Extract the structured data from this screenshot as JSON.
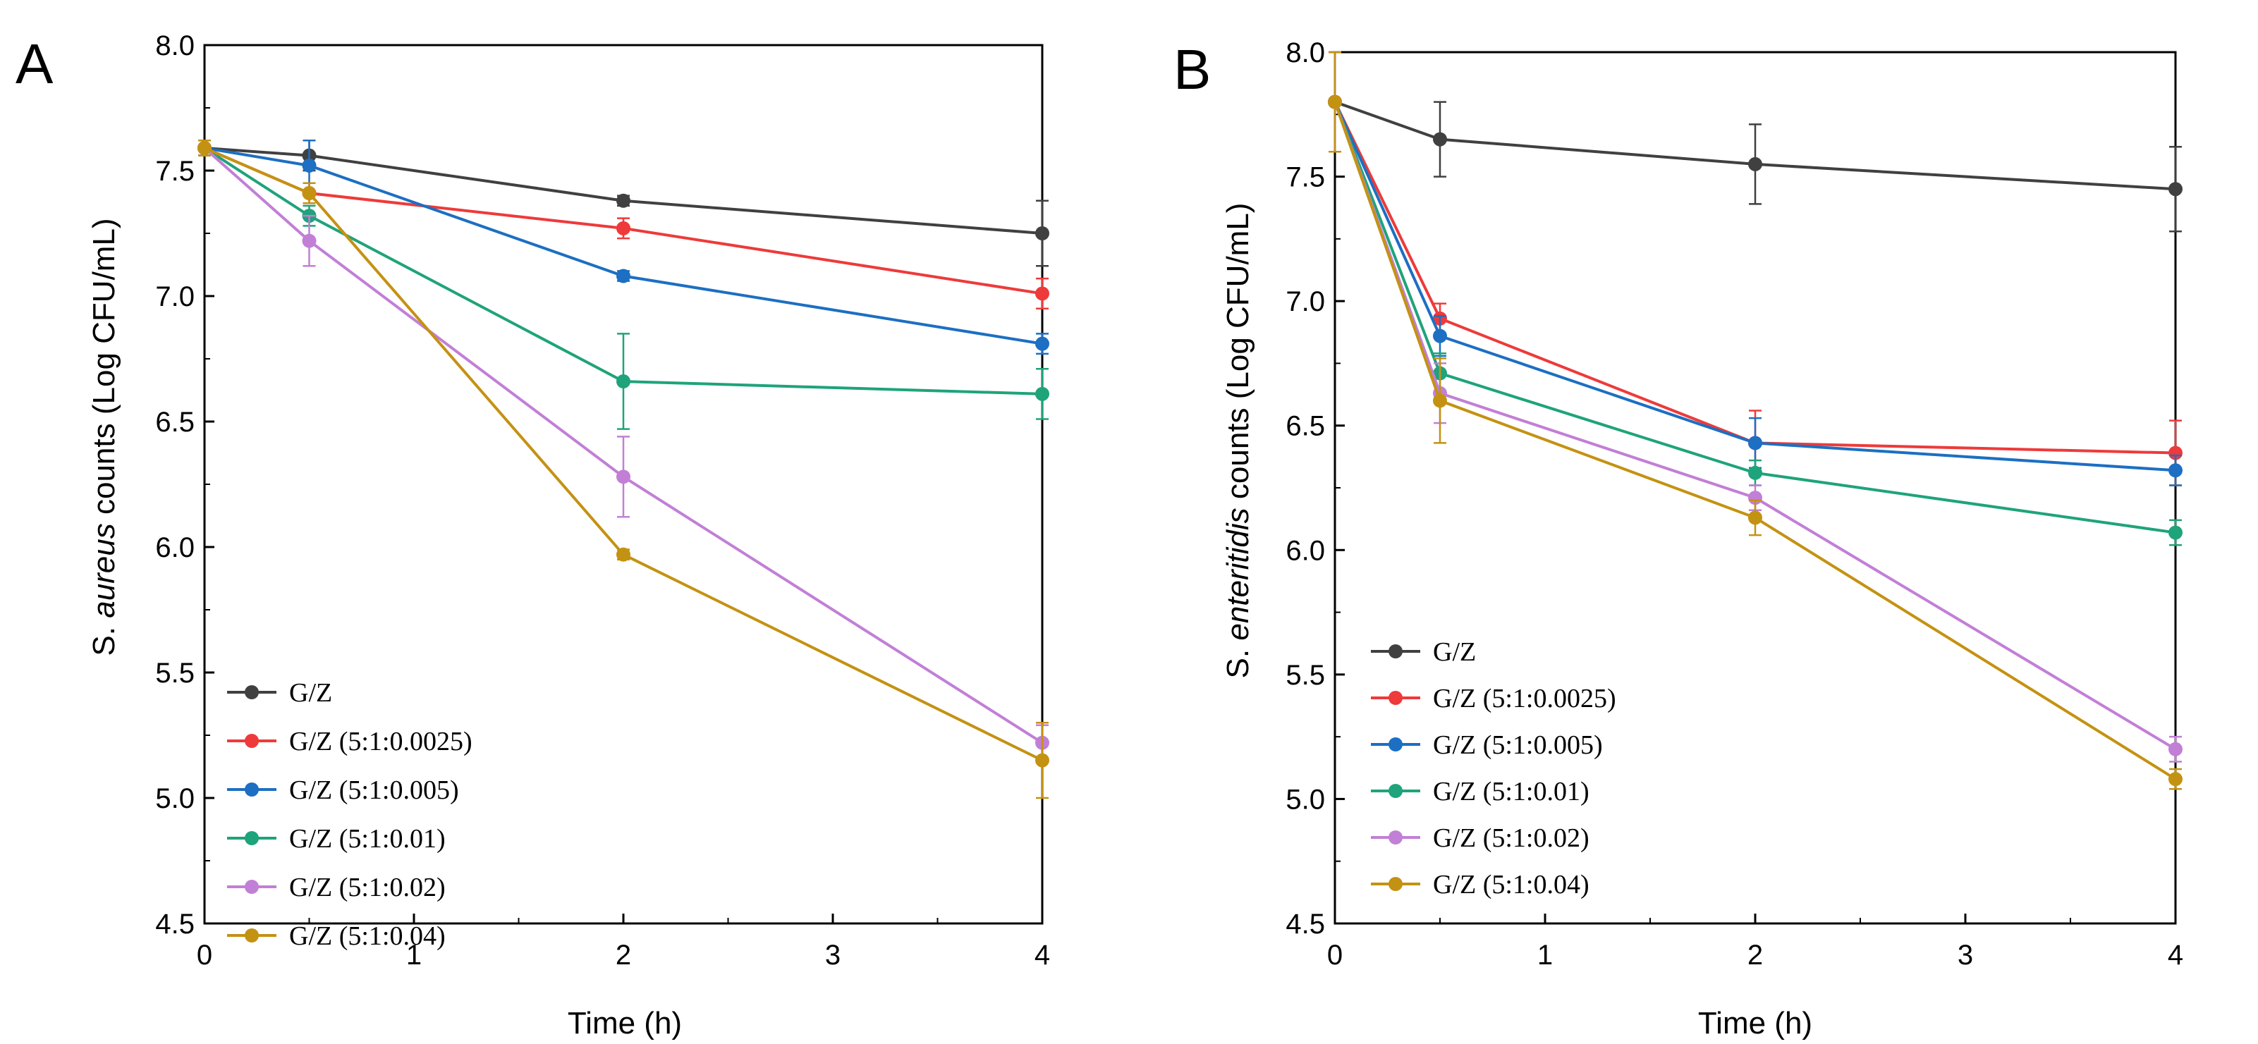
{
  "chart_data": [
    {
      "panel_label": "A",
      "type": "line",
      "xlabel": "Time (h)",
      "ylabel_prefix": "S. ",
      "ylabel_italic": "aureus",
      "ylabel_suffix": " counts (Log CFU/mL)",
      "xlim": [
        0,
        4
      ],
      "ylim": [
        4.5,
        8.0
      ],
      "xticks": [
        "0",
        "1",
        "2",
        "3",
        "4"
      ],
      "yticks": [
        "4.5",
        "5.0",
        "5.5",
        "6.0",
        "6.5",
        "7.0",
        "7.5",
        "8.0"
      ],
      "grid": false,
      "legend_position": "bottom-left",
      "x": [
        0,
        0.5,
        2,
        4
      ],
      "series": [
        {
          "name": "G/Z",
          "color": "#404040",
          "values": [
            7.59,
            7.56,
            7.38,
            7.25
          ],
          "errors": [
            0.03,
            0.06,
            0.02,
            0.13
          ]
        },
        {
          "name": "G/Z (5:1:0.0025)",
          "color": "#ee3a3a",
          "values": [
            7.59,
            7.41,
            7.27,
            7.01
          ],
          "errors": [
            0.03,
            0.04,
            0.04,
            0.06
          ]
        },
        {
          "name": "G/Z (5:1:0.005)",
          "color": "#1c6fc2",
          "values": [
            7.59,
            7.52,
            7.08,
            6.81
          ],
          "errors": [
            0.03,
            0.1,
            0.02,
            0.04
          ]
        },
        {
          "name": "G/Z (5:1:0.01)",
          "color": "#1fa37a",
          "values": [
            7.59,
            7.32,
            6.66,
            6.61
          ],
          "errors": [
            0.03,
            0.04,
            0.19,
            0.1
          ]
        },
        {
          "name": "G/Z (5:1:0.02)",
          "color": "#c27fd6",
          "values": [
            7.59,
            7.22,
            6.28,
            5.22
          ],
          "errors": [
            0.03,
            0.1,
            0.16,
            0.07
          ]
        },
        {
          "name": "G/Z (5:1:0.04)",
          "color": "#c49212",
          "values": [
            7.59,
            7.41,
            5.97,
            5.15
          ],
          "errors": [
            0.03,
            0.04,
            0.02,
            0.15
          ]
        }
      ]
    },
    {
      "panel_label": "B",
      "type": "line",
      "xlabel": "Time (h)",
      "ylabel_prefix": "S. ",
      "ylabel_italic": "enteritidis",
      "ylabel_suffix": " counts (Log CFU/mL)",
      "xlim": [
        0,
        4
      ],
      "ylim": [
        4.5,
        8.0
      ],
      "xticks": [
        "0",
        "1",
        "2",
        "3",
        "4"
      ],
      "yticks": [
        "4.5",
        "5.0",
        "5.5",
        "6.0",
        "6.5",
        "7.0",
        "7.5",
        "8.0"
      ],
      "grid": false,
      "legend_position": "bottom-left",
      "x": [
        0,
        0.5,
        2,
        4
      ],
      "series": [
        {
          "name": "G/Z",
          "color": "#404040",
          "values": [
            7.8,
            7.65,
            7.55,
            7.45
          ],
          "errors": [
            0.2,
            0.15,
            0.16,
            0.17
          ]
        },
        {
          "name": "G/Z (5:1:0.0025)",
          "color": "#ee3a3a",
          "values": [
            7.8,
            6.93,
            6.43,
            6.39
          ],
          "errors": [
            0.2,
            0.06,
            0.13,
            0.13
          ]
        },
        {
          "name": "G/Z (5:1:0.005)",
          "color": "#1c6fc2",
          "values": [
            7.8,
            6.86,
            6.43,
            6.32
          ],
          "errors": [
            0.2,
            0.08,
            0.1,
            0.06
          ]
        },
        {
          "name": "G/Z (5:1:0.01)",
          "color": "#1fa37a",
          "values": [
            7.8,
            6.71,
            6.31,
            6.07
          ],
          "errors": [
            0.2,
            0.08,
            0.05,
            0.05
          ]
        },
        {
          "name": "G/Z (5:1:0.02)",
          "color": "#c27fd6",
          "values": [
            7.8,
            6.63,
            6.21,
            5.2
          ],
          "errors": [
            0.2,
            0.12,
            0.05,
            0.05
          ]
        },
        {
          "name": "G/Z (5:1:0.04)",
          "color": "#c49212",
          "values": [
            7.8,
            6.6,
            6.13,
            5.08
          ],
          "errors": [
            0.2,
            0.17,
            0.07,
            0.04
          ]
        }
      ]
    }
  ]
}
